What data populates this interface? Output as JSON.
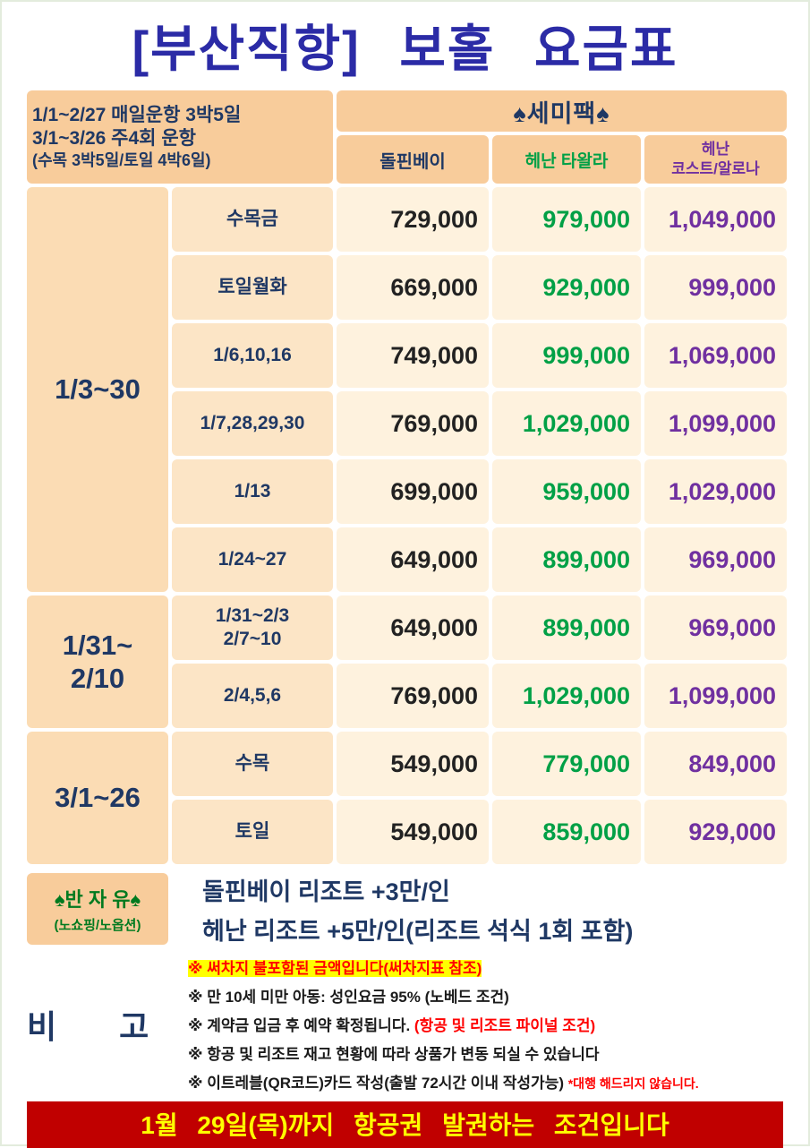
{
  "title": "[부산직항] 보홀 요금표",
  "colors": {
    "title_blue": "#2b2ba6",
    "navy": "#1f3864",
    "green": "#00a046",
    "purple": "#7030a0",
    "banner_red": "#c00000",
    "banner_yellow": "#ffff00",
    "header_orange": "#f8cc9b",
    "peach": "#fce5c6",
    "cream": "#fef2de"
  },
  "header": {
    "schedule": [
      "1/1~2/27 매일운항 3박5일",
      "3/1~3/26 주4회 운항",
      "(수목 3박5일/토일 4박6일)"
    ],
    "pack": "♠세미팩♠",
    "col1": "돌핀베이",
    "col2": "헤난 타왈라",
    "col3a": "헤난",
    "col3b": "코스트/알로나"
  },
  "groups": [
    {
      "period": [
        "1/3~30"
      ],
      "rows": [
        {
          "day": [
            "수목금"
          ],
          "prices": [
            "729,000",
            "979,000",
            "1,049,000"
          ]
        },
        {
          "day": [
            "토일월화"
          ],
          "prices": [
            "669,000",
            "929,000",
            "999,000"
          ]
        },
        {
          "day": [
            "1/6,10,16"
          ],
          "prices": [
            "749,000",
            "999,000",
            "1,069,000"
          ]
        },
        {
          "day": [
            "1/7,28,29,30"
          ],
          "prices": [
            "769,000",
            "1,029,000",
            "1,099,000"
          ]
        },
        {
          "day": [
            "1/13"
          ],
          "prices": [
            "699,000",
            "959,000",
            "1,029,000"
          ]
        },
        {
          "day": [
            "1/24~27"
          ],
          "prices": [
            "649,000",
            "899,000",
            "969,000"
          ]
        }
      ]
    },
    {
      "period": [
        "1/31~",
        "2/10"
      ],
      "rows": [
        {
          "day": [
            "1/31~2/3",
            "2/7~10"
          ],
          "prices": [
            "649,000",
            "899,000",
            "969,000"
          ]
        },
        {
          "day": [
            "2/4,5,6"
          ],
          "prices": [
            "769,000",
            "1,029,000",
            "1,099,000"
          ]
        }
      ]
    },
    {
      "period": [
        "3/1~26"
      ],
      "rows": [
        {
          "day": [
            "수목"
          ],
          "prices": [
            "549,000",
            "779,000",
            "849,000"
          ]
        },
        {
          "day": [
            "토일"
          ],
          "prices": [
            "549,000",
            "859,000",
            "929,000"
          ]
        }
      ]
    }
  ],
  "semi_free": {
    "label": "♠반 자 유♠",
    "sublabel": "(노쇼핑/노옵션)",
    "lines": [
      "돌핀베이 리조트 +3만/인",
      "헤난 리조트 +5만/인(리조트 석식 1회 포함)"
    ]
  },
  "notes": {
    "label": "비 고",
    "items": [
      {
        "highlight": "※ 써차지 불포함된 금액입니다(써차지표 참조)"
      },
      {
        "text": "※ 만 10세 미만 아동: 성인요금 95% (노베드 조건)"
      },
      {
        "text": "※ 계약금 입금 후 예약 확정됩니다. ",
        "red": "(항공 및 리조트 파이널 조건)"
      },
      {
        "text": "※ 항공 및 리조트 재고 현황에 따라 상품가 변동 되실 수 있습니다"
      },
      {
        "text": "※ 이트레블(QR코드)카드 작성(출발 72시간 이내 작성가능) ",
        "red": "*대행 해드리지 않습니다."
      }
    ]
  },
  "footer": {
    "banner": "1월 29일(목)까지 항공권 발권하는 조건입니다"
  }
}
